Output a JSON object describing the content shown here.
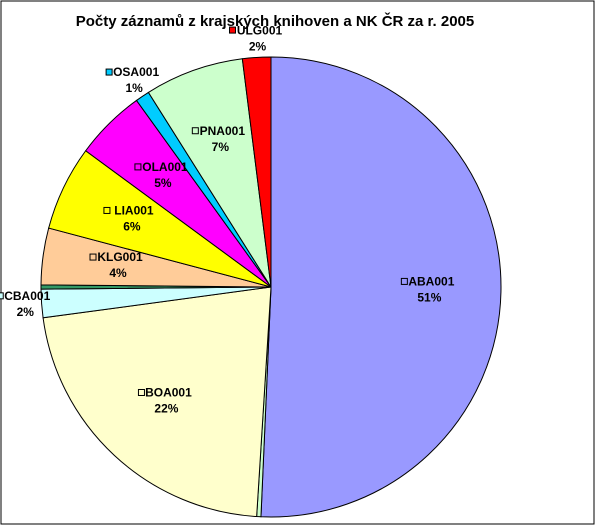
{
  "chart_data": {
    "type": "pie",
    "title": "Počty záznamů z krajských knihoven a NK ČR za r. 2005",
    "categories": [
      "ABA001",
      null,
      "BOA001",
      "CBA001",
      null,
      "KLG001",
      "LIA001",
      "OLA001",
      "OSA001",
      "PNA001",
      "ULG001"
    ],
    "values": [
      51,
      0.3,
      22,
      2,
      0.3,
      4,
      6,
      5,
      1,
      7,
      2
    ],
    "value_labels": [
      "51%",
      null,
      "22%",
      "2%",
      null,
      "4%",
      "6%",
      "5%",
      "1%",
      "7%",
      "2%"
    ],
    "colors": [
      "#9999ff",
      "#ccffcc",
      "#ffffcc",
      "#ccffff",
      "#339966",
      "#ffcc99",
      "#ffff00",
      "#ff00ff",
      "#00ccff",
      "#ccffcc",
      "#ff0000"
    ]
  }
}
